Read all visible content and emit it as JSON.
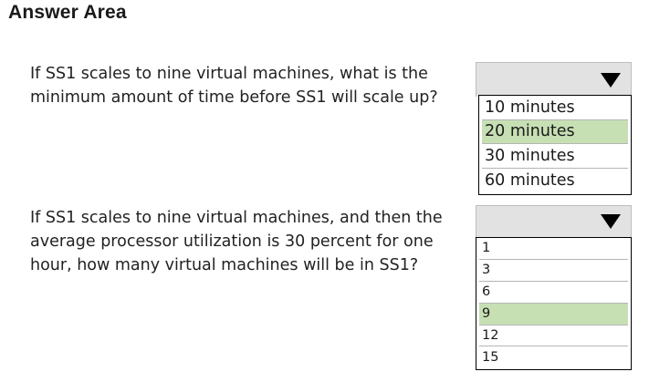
{
  "header": {
    "title": "Answer Area"
  },
  "questions": [
    {
      "lines": [
        "If SS1 scales to nine virtual machines, what is the",
        "minimum amount of time before SS1 will scale up?"
      ],
      "dropdown": {
        "icon": "triangle-down-icon",
        "options": [
          "10 minutes",
          "20 minutes",
          "30 minutes",
          "60 minutes"
        ],
        "highlighted": "20 minutes",
        "highlight_color": "#c6e0b4"
      }
    },
    {
      "lines": [
        "If SS1 scales to nine virtual machines, and then the",
        "average processor utilization is 30 percent for one",
        "hour, how many virtual machines will be in SS1?"
      ],
      "dropdown": {
        "icon": "triangle-down-icon",
        "options": [
          "1",
          "3",
          "6",
          "9",
          "12",
          "15"
        ],
        "highlighted": "9",
        "highlight_color": "#c6e0b4"
      }
    }
  ]
}
